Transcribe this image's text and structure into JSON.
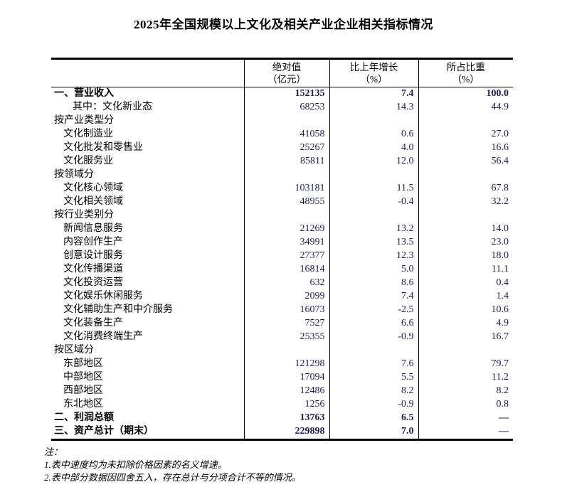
{
  "title": "2025年全国规模以上文化及相关产业企业相关指标情况",
  "colors": {
    "background": "#ffffff",
    "text": "#000000",
    "number_text": "#1c1c5e",
    "border": "#000000"
  },
  "table": {
    "headers": [
      {
        "line1": "绝对值",
        "line2": "（亿元）"
      },
      {
        "line1": "比上年增长",
        "line2": "（%）"
      },
      {
        "line1": "所占比重",
        "line2": "（%）"
      }
    ],
    "rows": [
      {
        "label": "一、营业收入",
        "indent": 0,
        "bold": true,
        "abs": "152135",
        "growth": "7.4",
        "share": "100.0"
      },
      {
        "label": "其中：文化新业态",
        "indent": 1,
        "bold": false,
        "abs": "68253",
        "growth": "14.3",
        "share": "44.9"
      },
      {
        "label": "按产业类型分",
        "indent": 0,
        "bold": false,
        "abs": "",
        "growth": "",
        "share": ""
      },
      {
        "label": "文化制造业",
        "indent": 2,
        "bold": false,
        "abs": "41058",
        "growth": "0.6",
        "share": "27.0"
      },
      {
        "label": "文化批发和零售业",
        "indent": 2,
        "bold": false,
        "abs": "25267",
        "growth": "4.0",
        "share": "16.6"
      },
      {
        "label": "文化服务业",
        "indent": 2,
        "bold": false,
        "abs": "85811",
        "growth": "12.0",
        "share": "56.4"
      },
      {
        "label": "按领域分",
        "indent": 0,
        "bold": false,
        "abs": "",
        "growth": "",
        "share": ""
      },
      {
        "label": "文化核心领域",
        "indent": 2,
        "bold": false,
        "abs": "103181",
        "growth": "11.5",
        "share": "67.8"
      },
      {
        "label": "文化相关领域",
        "indent": 2,
        "bold": false,
        "abs": "48955",
        "growth": "-0.4",
        "share": "32.2"
      },
      {
        "label": "按行业类别分",
        "indent": 0,
        "bold": false,
        "abs": "",
        "growth": "",
        "share": ""
      },
      {
        "label": "新闻信息服务",
        "indent": 2,
        "bold": false,
        "abs": "21269",
        "growth": "13.2",
        "share": "14.0"
      },
      {
        "label": "内容创作生产",
        "indent": 2,
        "bold": false,
        "abs": "34991",
        "growth": "13.5",
        "share": "23.0"
      },
      {
        "label": "创意设计服务",
        "indent": 2,
        "bold": false,
        "abs": "27377",
        "growth": "12.3",
        "share": "18.0"
      },
      {
        "label": "文化传播渠道",
        "indent": 2,
        "bold": false,
        "abs": "16814",
        "growth": "5.0",
        "share": "11.1"
      },
      {
        "label": "文化投资运营",
        "indent": 2,
        "bold": false,
        "abs": "632",
        "growth": "8.6",
        "share": "0.4"
      },
      {
        "label": "文化娱乐休闲服务",
        "indent": 2,
        "bold": false,
        "abs": "2099",
        "growth": "7.4",
        "share": "1.4"
      },
      {
        "label": "文化辅助生产和中介服务",
        "indent": 2,
        "bold": false,
        "abs": "16073",
        "growth": "-2.5",
        "share": "10.6"
      },
      {
        "label": "文化装备生产",
        "indent": 2,
        "bold": false,
        "abs": "7527",
        "growth": "6.6",
        "share": "4.9"
      },
      {
        "label": "文化消费终端生产",
        "indent": 2,
        "bold": false,
        "abs": "25355",
        "growth": "-0.9",
        "share": "16.7"
      },
      {
        "label": "按区域分",
        "indent": 0,
        "bold": false,
        "abs": "",
        "growth": "",
        "share": ""
      },
      {
        "label": "东部地区",
        "indent": 2,
        "bold": false,
        "abs": "121298",
        "growth": "7.6",
        "share": "79.7"
      },
      {
        "label": "中部地区",
        "indent": 2,
        "bold": false,
        "abs": "17094",
        "growth": "5.5",
        "share": "11.2"
      },
      {
        "label": "西部地区",
        "indent": 2,
        "bold": false,
        "abs": "12486",
        "growth": "8.2",
        "share": "8.2"
      },
      {
        "label": "东北地区",
        "indent": 2,
        "bold": false,
        "abs": "1256",
        "growth": "-0.9",
        "share": "0.8"
      },
      {
        "label": "二、利润总额",
        "indent": 0,
        "bold": true,
        "abs": "13763",
        "growth": "6.5",
        "share": "—"
      },
      {
        "label": "三、资产总计（期末）",
        "indent": 0,
        "bold": true,
        "abs": "229898",
        "growth": "7.0",
        "share": "—"
      }
    ]
  },
  "notes": {
    "title": "注：",
    "items": [
      "1.表中速度均为未扣除价格因素的名义增速。",
      "2.表中部分数据因四舍五入，存在总计与分项合计不等的情况。"
    ]
  }
}
